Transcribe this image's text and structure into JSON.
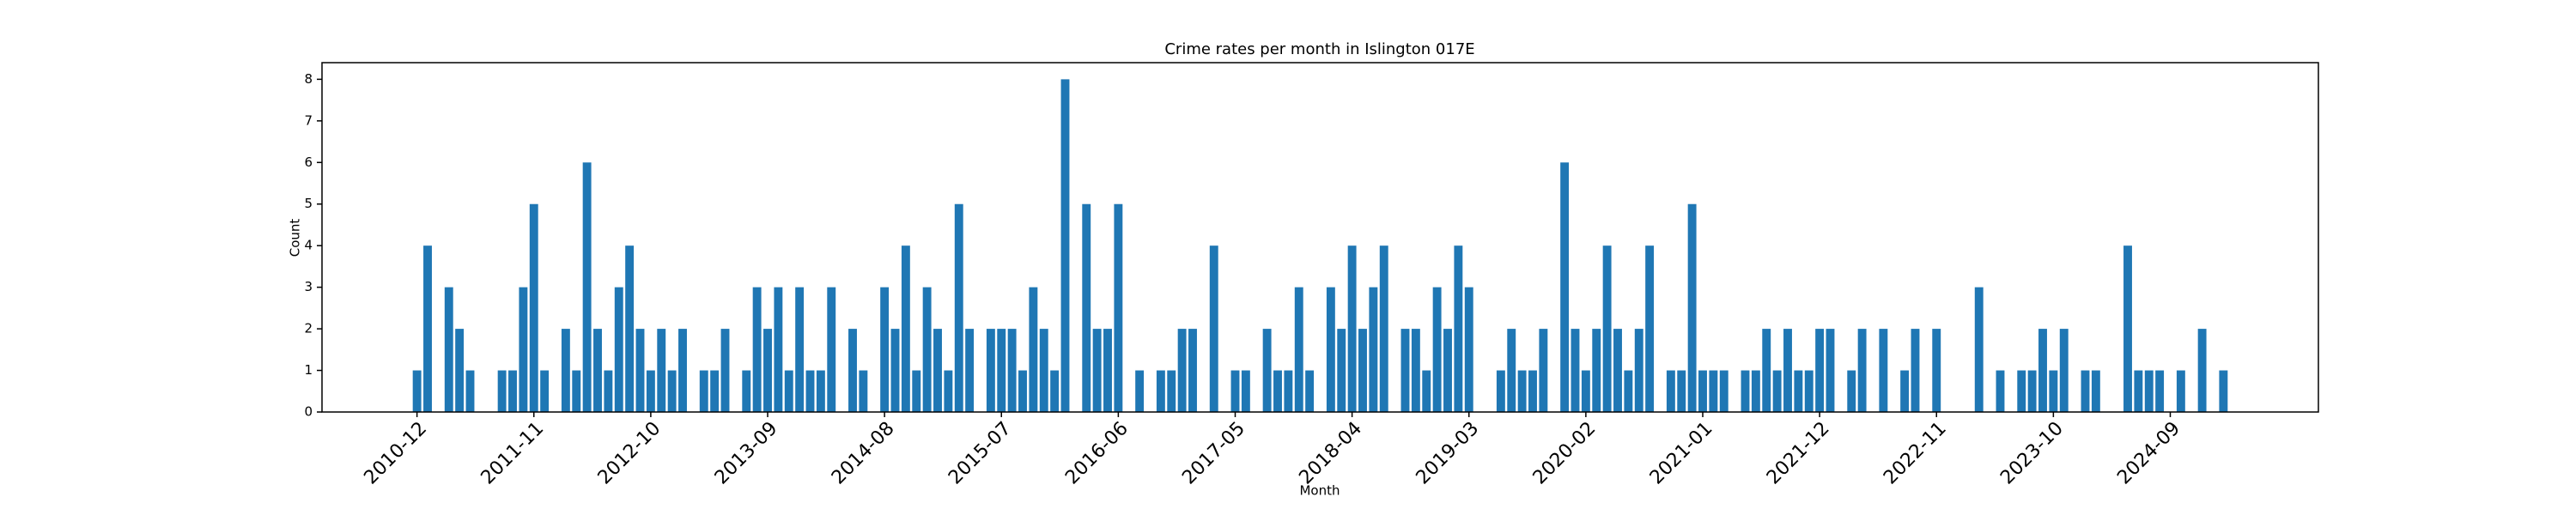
{
  "chart_data": {
    "type": "bar",
    "title": "Crime rates per month in Islington 017E",
    "x_label": "Month",
    "y_label": "Count",
    "color": "#1f77b4",
    "categories": [
      "2010-12",
      null,
      null,
      null,
      null,
      null,
      null,
      null,
      null,
      null,
      null,
      "2011-11",
      null,
      null,
      null,
      null,
      null,
      null,
      null,
      null,
      null,
      null,
      "2012-10",
      null,
      null,
      null,
      null,
      null,
      null,
      null,
      null,
      null,
      null,
      "2013-09",
      null,
      null,
      null,
      null,
      null,
      null,
      null,
      null,
      null,
      null,
      "2014-08",
      null,
      null,
      null,
      null,
      null,
      null,
      null,
      null,
      null,
      null,
      "2015-07",
      null,
      null,
      null,
      null,
      null,
      null,
      null,
      null,
      null,
      null,
      "2016-06",
      null,
      null,
      null,
      null,
      null,
      null,
      null,
      null,
      null,
      null,
      "2017-05",
      null,
      null,
      null,
      null,
      null,
      null,
      null,
      null,
      null,
      null,
      "2018-04",
      null,
      null,
      null,
      null,
      null,
      null,
      null,
      null,
      null,
      null,
      "2019-03",
      null,
      null,
      null,
      null,
      null,
      null,
      null,
      null,
      null,
      null,
      "2020-02",
      null,
      null,
      null,
      null,
      null,
      null,
      null,
      null,
      null,
      null,
      "2021-01",
      null,
      null,
      null,
      null,
      null,
      null,
      null,
      null,
      null,
      null,
      "2021-12",
      null,
      null,
      null,
      null,
      null,
      null,
      null,
      null,
      null,
      null,
      "2022-11",
      null,
      null,
      null,
      null,
      null,
      null,
      null,
      null,
      null,
      null,
      "2023-10",
      null,
      null,
      null,
      null,
      null,
      null,
      null,
      null,
      null,
      null,
      "2024-09",
      null,
      null,
      null,
      null,
      null
    ],
    "values": [
      1,
      4,
      0,
      3,
      2,
      1,
      0,
      0,
      1,
      1,
      3,
      5,
      1,
      0,
      2,
      1,
      6,
      2,
      1,
      3,
      4,
      2,
      1,
      2,
      1,
      2,
      0,
      1,
      1,
      2,
      0,
      1,
      3,
      2,
      3,
      1,
      3,
      1,
      1,
      3,
      0,
      2,
      1,
      0,
      3,
      2,
      4,
      1,
      3,
      2,
      1,
      5,
      2,
      0,
      2,
      2,
      2,
      1,
      3,
      2,
      1,
      8,
      0,
      5,
      2,
      2,
      5,
      0,
      1,
      0,
      1,
      1,
      2,
      2,
      0,
      4,
      0,
      1,
      1,
      0,
      2,
      1,
      1,
      3,
      1,
      0,
      3,
      2,
      4,
      2,
      3,
      4,
      0,
      2,
      2,
      1,
      3,
      2,
      4,
      3,
      0,
      0,
      1,
      2,
      1,
      1,
      2,
      0,
      6,
      2,
      1,
      2,
      4,
      2,
      1,
      2,
      4,
      0,
      1,
      1,
      5,
      1,
      1,
      1,
      0,
      1,
      1,
      2,
      1,
      2,
      1,
      1,
      2,
      2,
      0,
      1,
      2,
      0,
      2,
      0,
      1,
      2,
      0,
      2,
      0,
      0,
      0,
      3,
      0,
      1,
      0,
      1,
      1,
      2,
      1,
      2,
      0,
      1,
      1,
      0,
      0,
      4,
      1,
      1,
      1,
      0,
      1,
      0,
      2,
      0,
      1
    ],
    "ylim": [
      0,
      8.4
    ],
    "yticks": [
      0,
      1,
      2,
      3,
      4,
      5,
      6,
      7,
      8
    ]
  }
}
